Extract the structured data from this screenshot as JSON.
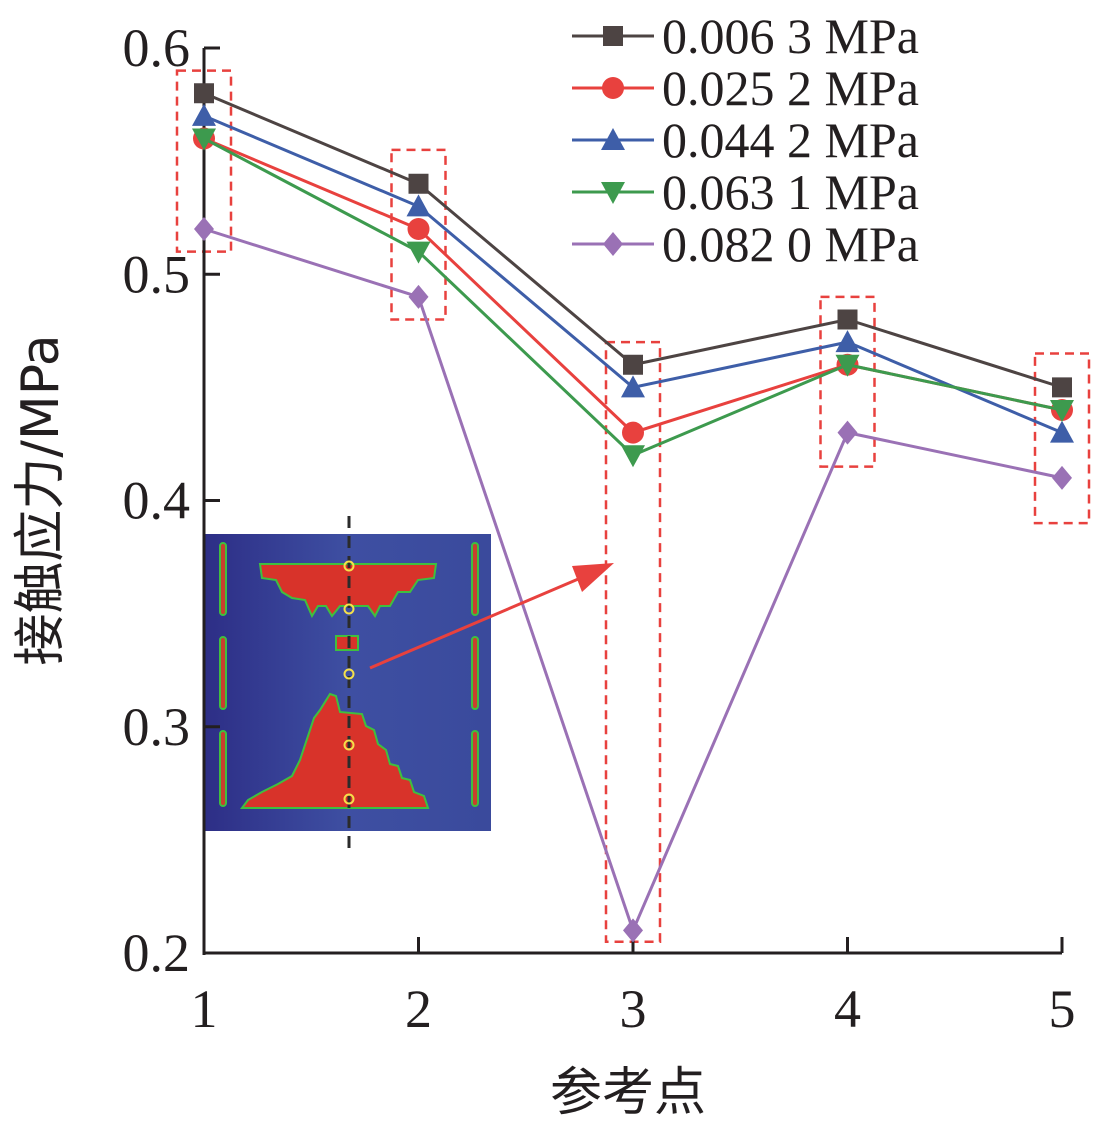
{
  "chart_data": {
    "type": "line",
    "xlabel": "参考点",
    "ylabel": "接触应力/MPa",
    "categories": [
      "1",
      "2",
      "3",
      "4",
      "5"
    ],
    "y_ticks": [
      "0.2",
      "0.3",
      "0.4",
      "0.5",
      "0.6"
    ],
    "ylim": [
      0.2,
      0.6
    ],
    "legend_position": "top-right",
    "grid": false,
    "series": [
      {
        "name": "0.006 3 MPa",
        "color": "#4d4443",
        "marker": "square",
        "values": [
          0.58,
          0.54,
          0.46,
          0.48,
          0.45
        ]
      },
      {
        "name": "0.025 2 MPa",
        "color": "#e8413e",
        "marker": "circle",
        "values": [
          0.56,
          0.52,
          0.43,
          0.46,
          0.44
        ]
      },
      {
        "name": "0.044 2 MPa",
        "color": "#3e5ea8",
        "marker": "triangle-up",
        "values": [
          0.57,
          0.53,
          0.45,
          0.47,
          0.43
        ]
      },
      {
        "name": "0.063 1 MPa",
        "color": "#3d9a4e",
        "marker": "triangle-down",
        "values": [
          0.56,
          0.51,
          0.42,
          0.46,
          0.44
        ]
      },
      {
        "name": "0.082 0 MPa",
        "color": "#9a71b5",
        "marker": "diamond",
        "values": [
          0.52,
          0.49,
          0.21,
          0.43,
          0.41
        ]
      }
    ],
    "highlight_boxes": [
      {
        "category": "1",
        "y_range": [
          0.51,
          0.59
        ]
      },
      {
        "category": "2",
        "y_range": [
          0.48,
          0.555
        ]
      },
      {
        "category": "3",
        "y_range": [
          0.205,
          0.47
        ]
      },
      {
        "category": "4",
        "y_range": [
          0.415,
          0.49
        ]
      },
      {
        "category": "5",
        "y_range": [
          0.39,
          0.465
        ]
      }
    ],
    "inset": {
      "description_icon": "cross-section-contact-map-icon",
      "background_color": "#3a4a9c",
      "contact_color": "#d8332a",
      "edge_color": "#3fbf3f",
      "marker_color": "#f5e04a",
      "arrow_color": "#e8413e",
      "arrow_target_category": "3"
    }
  }
}
